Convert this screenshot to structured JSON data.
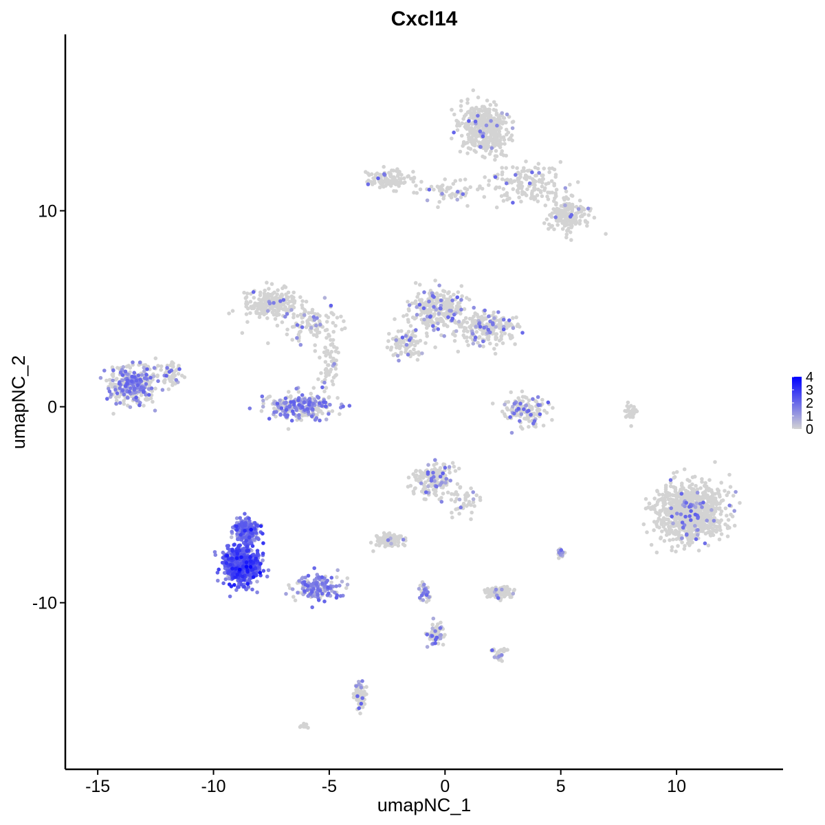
{
  "chart_data": {
    "type": "scatter",
    "title": "Cxcl14",
    "xlabel": "umapNC_1",
    "ylabel": "umapNC_2",
    "xlim": [
      -16.4,
      14.6
    ],
    "ylim": [
      -18.5,
      19.0
    ],
    "x_ticks": [
      -15,
      -10,
      -5,
      0,
      5,
      10
    ],
    "y_ticks": [
      -10,
      0,
      10
    ],
    "x_tick_labels": [
      "-15",
      "-10",
      "-5",
      "0",
      "5",
      "10"
    ],
    "y_tick_labels": [
      "-10",
      "0",
      "10"
    ],
    "grid": false,
    "legend_position": "right",
    "color_scale": {
      "low_color": "#d3d3d3",
      "high_color": "#0000ff",
      "min": 0,
      "max": 4,
      "breaks": [
        0,
        1,
        2,
        3,
        4
      ],
      "break_labels": [
        "0",
        "1",
        "2",
        "3",
        "4"
      ]
    },
    "clusters": [
      {
        "cx": 1.7,
        "cy": 14.2,
        "sx": 1.0,
        "sy": 1.1,
        "n": 420,
        "expr": 0.05
      },
      {
        "cx": 3.6,
        "cy": 11.4,
        "sx": 1.6,
        "sy": 0.9,
        "n": 160,
        "expr": 0.05
      },
      {
        "cx": 5.3,
        "cy": 9.7,
        "sx": 0.8,
        "sy": 0.7,
        "n": 170,
        "expr": 0.05
      },
      {
        "cx": -2.4,
        "cy": 11.6,
        "sx": 0.9,
        "sy": 0.4,
        "n": 110,
        "expr": 0.05
      },
      {
        "cx": 0.2,
        "cy": 11.0,
        "sx": 1.3,
        "sy": 0.6,
        "n": 60,
        "expr": 0.05
      },
      {
        "cx": -7.5,
        "cy": 5.3,
        "sx": 1.1,
        "sy": 0.6,
        "n": 210,
        "expr": 0.05
      },
      {
        "cx": -5.8,
        "cy": 4.2,
        "sx": 1.3,
        "sy": 0.9,
        "n": 110,
        "expr": 0.1
      },
      {
        "cx": -0.3,
        "cy": 5.0,
        "sx": 1.0,
        "sy": 0.9,
        "n": 280,
        "expr": 0.15
      },
      {
        "cx": 1.8,
        "cy": 4.0,
        "sx": 1.1,
        "sy": 0.7,
        "n": 220,
        "expr": 0.15
      },
      {
        "cx": -1.6,
        "cy": 3.2,
        "sx": 0.8,
        "sy": 0.9,
        "n": 90,
        "expr": 0.1
      },
      {
        "cx": -13.5,
        "cy": 1.1,
        "sx": 0.9,
        "sy": 0.9,
        "n": 330,
        "expr": 0.45
      },
      {
        "cx": -11.8,
        "cy": 1.8,
        "sx": 0.5,
        "sy": 0.6,
        "n": 60,
        "expr": 0.1
      },
      {
        "cx": -6.2,
        "cy": 0.0,
        "sx": 1.3,
        "sy": 0.6,
        "n": 260,
        "expr": 0.5
      },
      {
        "cx": -5.0,
        "cy": 2.2,
        "sx": 0.4,
        "sy": 1.2,
        "n": 60,
        "expr": 0.05
      },
      {
        "cx": 3.5,
        "cy": -0.2,
        "sx": 0.9,
        "sy": 0.7,
        "n": 150,
        "expr": 0.2
      },
      {
        "cx": 8.0,
        "cy": -0.3,
        "sx": 0.2,
        "sy": 0.5,
        "n": 25,
        "expr": 0.0
      },
      {
        "cx": 10.6,
        "cy": -5.4,
        "sx": 1.3,
        "sy": 1.3,
        "n": 950,
        "expr": 0.05
      },
      {
        "cx": -0.5,
        "cy": -3.7,
        "sx": 0.8,
        "sy": 0.8,
        "n": 170,
        "expr": 0.15
      },
      {
        "cx": 0.9,
        "cy": -4.8,
        "sx": 0.6,
        "sy": 0.7,
        "n": 45,
        "expr": 0.1
      },
      {
        "cx": -2.4,
        "cy": -6.8,
        "sx": 0.6,
        "sy": 0.3,
        "n": 95,
        "expr": 0.05
      },
      {
        "cx": -8.8,
        "cy": -8.1,
        "sx": 0.7,
        "sy": 0.9,
        "n": 650,
        "expr": 1.9
      },
      {
        "cx": -8.6,
        "cy": -6.3,
        "sx": 0.45,
        "sy": 0.5,
        "n": 260,
        "expr": 1.4
      },
      {
        "cx": -5.5,
        "cy": -9.2,
        "sx": 0.9,
        "sy": 0.6,
        "n": 160,
        "expr": 0.6
      },
      {
        "cx": 2.3,
        "cy": -9.5,
        "sx": 0.5,
        "sy": 0.25,
        "n": 110,
        "expr": 0.05
      },
      {
        "cx": 5.0,
        "cy": -7.4,
        "sx": 0.15,
        "sy": 0.25,
        "n": 25,
        "expr": 0.2
      },
      {
        "cx": -0.4,
        "cy": -11.6,
        "sx": 0.3,
        "sy": 0.5,
        "n": 70,
        "expr": 0.25
      },
      {
        "cx": -0.9,
        "cy": -9.5,
        "sx": 0.2,
        "sy": 0.5,
        "n": 35,
        "expr": 0.4
      },
      {
        "cx": 2.3,
        "cy": -12.6,
        "sx": 0.3,
        "sy": 0.3,
        "n": 30,
        "expr": 0.15
      },
      {
        "cx": -3.7,
        "cy": -14.7,
        "sx": 0.25,
        "sy": 0.6,
        "n": 55,
        "expr": 0.15
      },
      {
        "cx": -6.0,
        "cy": -16.3,
        "sx": 0.2,
        "sy": 0.1,
        "n": 8,
        "expr": 0.0
      }
    ]
  }
}
